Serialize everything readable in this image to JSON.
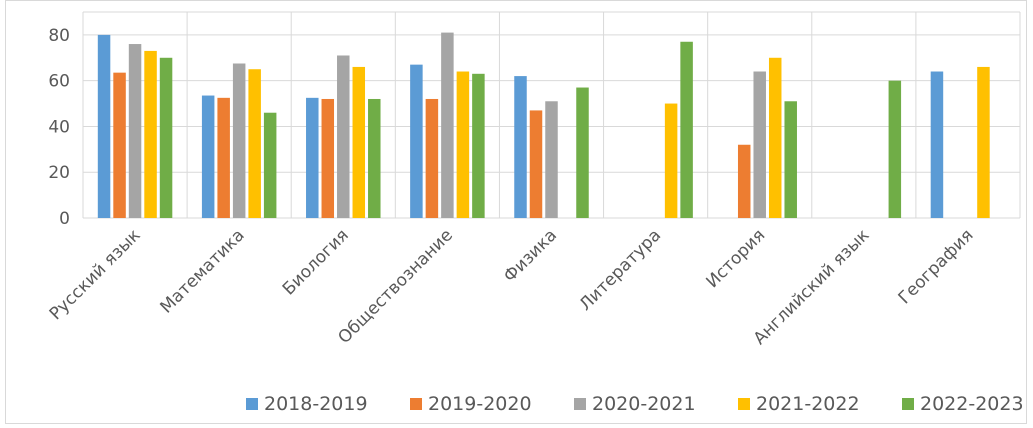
{
  "chart_data": {
    "type": "bar",
    "title": "",
    "xlabel": "",
    "ylabel": "",
    "ylim": [
      0,
      90
    ],
    "yticks": [
      0,
      20,
      40,
      60,
      80
    ],
    "grid": true,
    "legend_position": "bottom",
    "categories": [
      "Русский язык",
      "Математика",
      "Биология",
      "Обществознание",
      "Физика",
      "Литература",
      "История",
      "Английский язык",
      "География"
    ],
    "series": [
      {
        "name": "2018-2019",
        "color": "#5B9BD5",
        "values": [
          80,
          53.5,
          52.5,
          67,
          62,
          null,
          null,
          null,
          64
        ]
      },
      {
        "name": "2019-2020",
        "color": "#ED7D31",
        "values": [
          63.5,
          52.5,
          52,
          52,
          47,
          null,
          32,
          null,
          null
        ]
      },
      {
        "name": "2020-2021",
        "color": "#A5A5A5",
        "values": [
          76,
          67.5,
          71,
          81,
          51,
          null,
          64,
          null,
          null
        ]
      },
      {
        "name": "2021-2022",
        "color": "#FFC000",
        "values": [
          73,
          65,
          66,
          64,
          null,
          50,
          70,
          null,
          66
        ]
      },
      {
        "name": "2022-2023",
        "color": "#70AD47",
        "values": [
          70,
          46,
          52,
          63,
          57,
          77,
          51,
          60,
          null
        ]
      }
    ]
  }
}
